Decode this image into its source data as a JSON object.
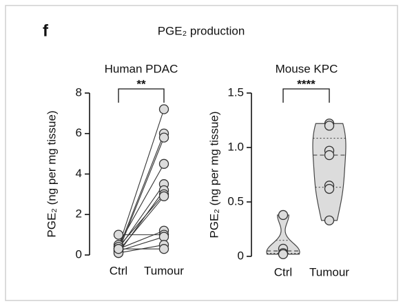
{
  "panel_label": "f",
  "title": "PGE₂ production",
  "chart_data": [
    {
      "type": "paired",
      "title": "Human PDAC",
      "ylabel": "PGE₂ (ng per mg tissue)",
      "categories": [
        "Ctrl",
        "Tumour"
      ],
      "values": [
        [
          0.4,
          0.3,
          0.2,
          0.5,
          0.3,
          0.1,
          0.4,
          0.2,
          0.3,
          1.0,
          0.2,
          0.1,
          0.3
        ],
        [
          7.2,
          6.0,
          5.8,
          4.5,
          3.5,
          3.2,
          3.0,
          2.9,
          1.2,
          1.0,
          0.9,
          0.5,
          0.3
        ]
      ],
      "ylim": [
        0,
        8
      ],
      "yticks": [
        0,
        2,
        4,
        6,
        8
      ],
      "annotation": "**"
    },
    {
      "type": "violin",
      "title": "Mouse KPC",
      "ylabel": "PGE₂ (ng per mg tissue)",
      "categories": [
        "Ctrl",
        "Tumour"
      ],
      "values": [
        [
          0.38,
          0.07,
          0.03,
          0.02
        ],
        [
          1.22,
          1.2,
          0.97,
          0.93,
          0.65,
          0.62,
          0.33
        ]
      ],
      "ylim": [
        0,
        1.5
      ],
      "yticks": [
        0,
        0.5,
        {
          "value": 1,
          "label": "1.0"
        },
        1.5
      ],
      "annotation": "****"
    }
  ]
}
